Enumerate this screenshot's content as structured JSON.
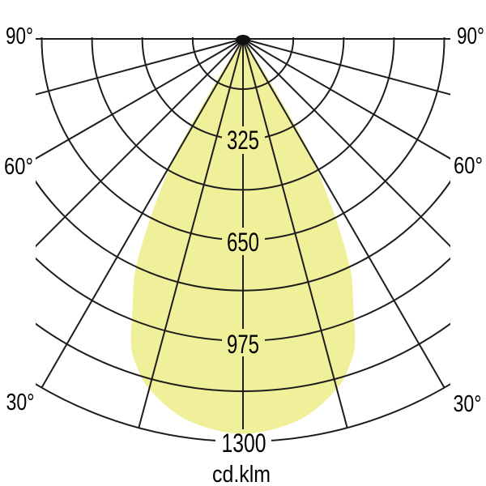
{
  "chart_data": {
    "type": "polar_intensity_curve",
    "description": "Luminous intensity distribution polar diagram of a narrow-beam luminaire, symmetric about nadir, beam pointing downward",
    "unit_label": "cd.klm",
    "angle_tick_labels": [
      "90°",
      "60°",
      "30°"
    ],
    "angle_grid_step_deg": 15,
    "angle_range_deg": [
      -90,
      90
    ],
    "ring_step": 162.5,
    "ring_max": 1300,
    "ring_labels": [
      "325",
      "650",
      "975",
      "1300"
    ],
    "ring_label_values": [
      325,
      650,
      975,
      1300
    ],
    "grid_on": true,
    "legend": "none",
    "beam_fill_color": "#f0ef9a",
    "grid_color": "#1c1c1c",
    "symmetric": true,
    "peak_intensity_cd_klm": 1275,
    "beam_cutoff_deg": 32.7,
    "beam_profile": [
      {
        "deg": 0,
        "cd": 1275
      },
      {
        "deg": 5,
        "cd": 1262
      },
      {
        "deg": 10,
        "cd": 1230
      },
      {
        "deg": 15,
        "cd": 1170
      },
      {
        "deg": 17.5,
        "cd": 1122
      },
      {
        "deg": 20,
        "cd": 1055
      },
      {
        "deg": 22.5,
        "cd": 930
      },
      {
        "deg": 25,
        "cd": 820
      },
      {
        "deg": 27.5,
        "cd": 640
      },
      {
        "deg": 30,
        "cd": 455
      },
      {
        "deg": 31,
        "cd": 340
      },
      {
        "deg": 32,
        "cd": 200
      },
      {
        "deg": 32.5,
        "cd": 80
      },
      {
        "deg": 32.7,
        "cd": 0
      }
    ]
  }
}
